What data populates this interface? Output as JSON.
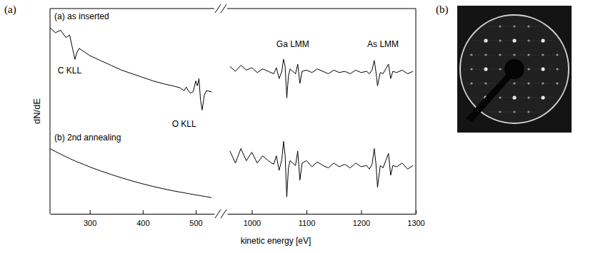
{
  "panel_labels": [
    "(a)",
    "(b)"
  ],
  "chart_data": [
    {
      "type": "line",
      "y_label": "dN/dE",
      "tick_labels": "x",
      "xlim": [
        225,
        535
      ],
      "xticks": [
        300,
        400,
        500
      ],
      "ylim": [
        1.5,
        10
      ],
      "x": [
        225,
        235,
        245,
        255,
        262,
        268,
        272,
        276,
        280,
        290,
        300,
        320,
        340,
        360,
        380,
        400,
        420,
        440,
        460,
        470,
        478,
        482,
        486,
        490,
        495,
        500,
        503,
        506,
        509,
        512,
        516,
        520,
        530
      ],
      "series": [
        {
          "name": "(a) as inserted",
          "color": "#000000",
          "values": [
            9.2,
            9.0,
            9.1,
            8.8,
            8.9,
            8.3,
            7.9,
            8.2,
            8.35,
            8.2,
            8.05,
            7.85,
            7.65,
            7.45,
            7.3,
            7.15,
            7.0,
            6.88,
            6.78,
            6.72,
            6.6,
            6.75,
            6.6,
            6.5,
            6.55,
            7.0,
            6.8,
            7.1,
            6.2,
            5.8,
            6.4,
            6.6,
            6.55
          ]
        },
        {
          "name": "(b) 2nd annealing",
          "color": "#000000",
          "values": [
            4.2,
            4.08,
            3.97,
            3.86,
            3.79,
            3.73,
            3.69,
            3.65,
            3.62,
            3.53,
            3.44,
            3.28,
            3.13,
            2.99,
            2.86,
            2.74,
            2.63,
            2.53,
            2.44,
            2.4,
            2.37,
            2.35,
            2.34,
            2.32,
            2.3,
            2.28,
            2.27,
            2.26,
            2.25,
            2.24,
            2.22,
            2.21,
            2.17
          ]
        }
      ],
      "annotations": [
        {
          "text": "C KLL",
          "x": 262,
          "y": 7.3
        },
        {
          "text": "O KLL",
          "x": 478,
          "y": 5.1
        }
      ]
    },
    {
      "type": "line",
      "x_label": "kinetic energy [eV]",
      "tick_labels": "x",
      "xlim": [
        955,
        1300
      ],
      "xticks": [
        1000,
        1100,
        1200,
        1300
      ],
      "ylim": [
        1.5,
        10
      ],
      "x": [
        960,
        970,
        980,
        990,
        1000,
        1010,
        1020,
        1030,
        1040,
        1045,
        1050,
        1055,
        1058,
        1061,
        1064,
        1067,
        1070,
        1075,
        1080,
        1084,
        1088,
        1092,
        1100,
        1110,
        1120,
        1130,
        1140,
        1150,
        1160,
        1170,
        1180,
        1190,
        1200,
        1210,
        1215,
        1220,
        1224,
        1227,
        1230,
        1235,
        1240,
        1245,
        1250,
        1254,
        1258,
        1265,
        1275,
        1285,
        1295
      ],
      "series": [
        {
          "color": "#000000",
          "values": [
            7.6,
            7.4,
            7.65,
            7.45,
            7.55,
            7.35,
            7.5,
            7.4,
            7.3,
            7.55,
            7.1,
            7.4,
            7.9,
            7.6,
            6.3,
            7.2,
            7.5,
            7.4,
            7.3,
            7.7,
            6.9,
            7.4,
            7.45,
            7.35,
            7.5,
            7.4,
            7.3,
            7.45,
            7.35,
            7.4,
            7.3,
            7.45,
            7.35,
            7.4,
            7.3,
            7.45,
            7.85,
            7.4,
            6.8,
            7.35,
            7.3,
            7.5,
            7.7,
            7.1,
            7.4,
            7.35,
            7.45,
            7.3,
            7.4
          ]
        },
        {
          "color": "#000000",
          "values": [
            4.1,
            3.6,
            4.2,
            3.7,
            4.05,
            3.6,
            3.9,
            3.7,
            3.55,
            3.9,
            3.3,
            3.75,
            4.5,
            3.9,
            2.2,
            3.4,
            3.7,
            3.6,
            3.5,
            4.1,
            2.9,
            3.6,
            3.7,
            3.45,
            3.65,
            3.5,
            3.4,
            3.6,
            3.45,
            3.55,
            3.4,
            3.6,
            3.45,
            3.5,
            3.35,
            3.55,
            4.2,
            3.6,
            2.6,
            3.5,
            3.4,
            3.7,
            4.0,
            3.1,
            3.5,
            3.45,
            3.6,
            3.35,
            3.5
          ]
        }
      ],
      "annotations": [
        {
          "text": "Ga LMM",
          "x": 1075,
          "y": 8.4
        },
        {
          "text": "As LMM",
          "x": 1240,
          "y": 8.4
        }
      ]
    }
  ]
}
